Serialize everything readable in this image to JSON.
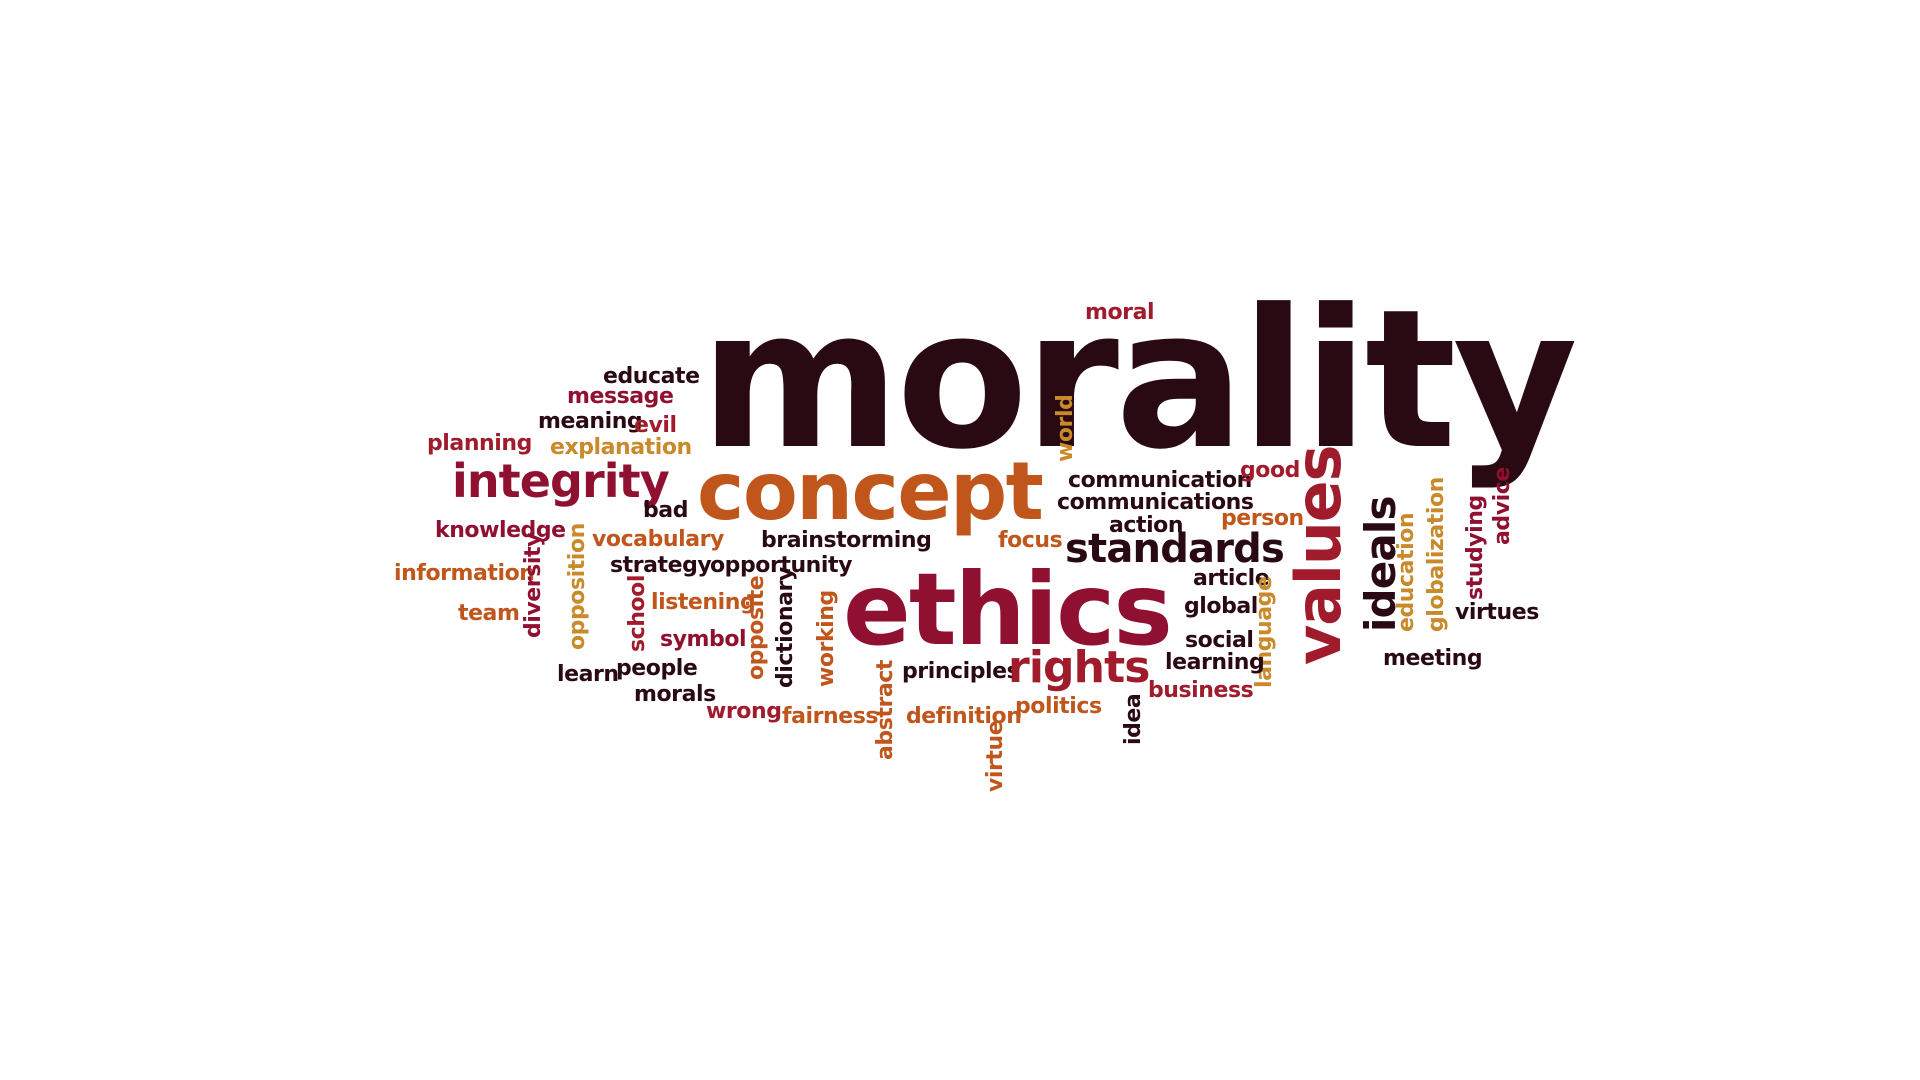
{
  "palette": {
    "dark": "#2a0a12",
    "red": "#a01c2c",
    "orange": "#c0561c",
    "amber": "#c88a2a",
    "crimson": "#8f1030"
  },
  "words": [
    {
      "text": "morality",
      "color": "#2a0a12"
    },
    {
      "text": "moral",
      "color": "#a01c2c"
    },
    {
      "text": "educate",
      "color": "#2a0a12"
    },
    {
      "text": "message",
      "color": "#8f1030"
    },
    {
      "text": "meaning",
      "color": "#2a0a12"
    },
    {
      "text": "evil",
      "color": "#a01c2c"
    },
    {
      "text": "planning",
      "color": "#a01c2c"
    },
    {
      "text": "explanation",
      "color": "#c88a2a"
    },
    {
      "text": "integrity",
      "color": "#8f1030"
    },
    {
      "text": "concept",
      "color": "#c0561c"
    },
    {
      "text": "world",
      "color": "#c88a2a"
    },
    {
      "text": "communication",
      "color": "#2a0a12"
    },
    {
      "text": "good",
      "color": "#a01c2c"
    },
    {
      "text": "communications",
      "color": "#2a0a12"
    },
    {
      "text": "bad",
      "color": "#2a0a12"
    },
    {
      "text": "person",
      "color": "#c0561c"
    },
    {
      "text": "action",
      "color": "#2a0a12"
    },
    {
      "text": "values",
      "color": "#a01c2c"
    },
    {
      "text": "knowledge",
      "color": "#8f1030"
    },
    {
      "text": "vocabulary",
      "color": "#c0561c"
    },
    {
      "text": "brainstorming",
      "color": "#2a0a12"
    },
    {
      "text": "focus",
      "color": "#c0561c"
    },
    {
      "text": "standards",
      "color": "#2a0a12"
    },
    {
      "text": "ideals",
      "color": "#2a0a12"
    },
    {
      "text": "education",
      "color": "#c88a2a"
    },
    {
      "text": "globalization",
      "color": "#c88a2a"
    },
    {
      "text": "studying",
      "color": "#8f1030"
    },
    {
      "text": "advice",
      "color": "#8f1030"
    },
    {
      "text": "information",
      "color": "#c0561c"
    },
    {
      "text": "diversity",
      "color": "#8f1030"
    },
    {
      "text": "opposition",
      "color": "#c88a2a"
    },
    {
      "text": "strategy",
      "color": "#2a0a12"
    },
    {
      "text": "opportunity",
      "color": "#2a0a12"
    },
    {
      "text": "ethics",
      "color": "#8f1030"
    },
    {
      "text": "article",
      "color": "#2a0a12"
    },
    {
      "text": "team",
      "color": "#c0561c"
    },
    {
      "text": "school",
      "color": "#a01c2c"
    },
    {
      "text": "listening",
      "color": "#c0561c"
    },
    {
      "text": "opposite",
      "color": "#c0561c"
    },
    {
      "text": "dictionary",
      "color": "#2a0a12"
    },
    {
      "text": "working",
      "color": "#c0561c"
    },
    {
      "text": "global",
      "color": "#2a0a12"
    },
    {
      "text": "language",
      "color": "#c88a2a"
    },
    {
      "text": "virtues",
      "color": "#2a0a12"
    },
    {
      "text": "symbol",
      "color": "#8f1030"
    },
    {
      "text": "social",
      "color": "#2a0a12"
    },
    {
      "text": "learn",
      "color": "#2a0a12"
    },
    {
      "text": "people",
      "color": "#2a0a12"
    },
    {
      "text": "principles",
      "color": "#2a0a12"
    },
    {
      "text": "rights",
      "color": "#a01c2c"
    },
    {
      "text": "learning",
      "color": "#2a0a12"
    },
    {
      "text": "meeting",
      "color": "#2a0a12"
    },
    {
      "text": "morals",
      "color": "#2a0a12"
    },
    {
      "text": "abstract",
      "color": "#c0561c"
    },
    {
      "text": "business",
      "color": "#a01c2c"
    },
    {
      "text": "wrong",
      "color": "#a01c2c"
    },
    {
      "text": "fairness",
      "color": "#c0561c"
    },
    {
      "text": "definition",
      "color": "#c0561c"
    },
    {
      "text": "politics",
      "color": "#c0561c"
    },
    {
      "text": "idea",
      "color": "#2a0a12"
    },
    {
      "text": "virtue",
      "color": "#c0561c"
    }
  ]
}
